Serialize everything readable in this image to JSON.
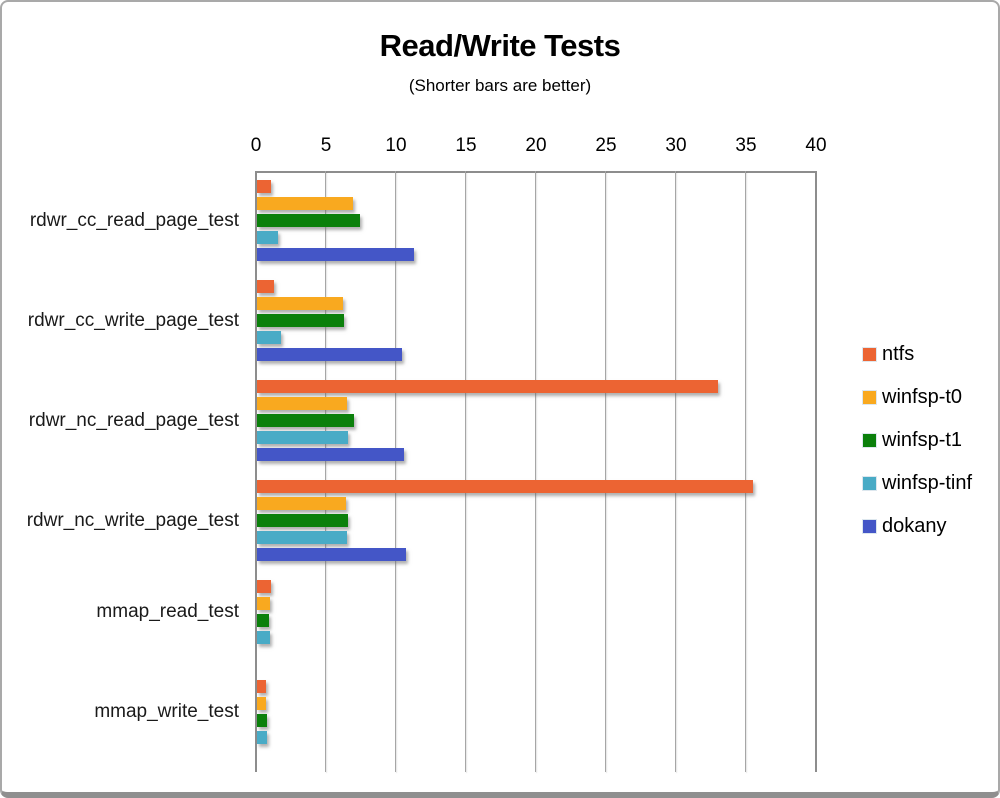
{
  "window": {
    "kind": "chart-image"
  },
  "chart_data": {
    "type": "bar",
    "orientation": "horizontal",
    "title": "Read/Write Tests",
    "subtitle": "(Shorter bars are better)",
    "categories": [
      "rdwr_cc_read_page_test",
      "rdwr_cc_write_page_test",
      "rdwr_nc_read_page_test",
      "rdwr_nc_write_page_test",
      "mmap_read_test",
      "mmap_write_test"
    ],
    "series": [
      {
        "name": "ntfs",
        "color": "#ec6433",
        "values": [
          1.1,
          1.3,
          33.0,
          35.5,
          1.1,
          0.7
        ]
      },
      {
        "name": "winfsp-t0",
        "color": "#f9a91f",
        "values": [
          6.9,
          6.2,
          6.5,
          6.4,
          1.0,
          0.7
        ]
      },
      {
        "name": "winfsp-t1",
        "color": "#0b800b",
        "values": [
          7.4,
          6.3,
          7.0,
          6.6,
          0.9,
          0.75
        ]
      },
      {
        "name": "winfsp-tinf",
        "color": "#49abc6",
        "values": [
          1.6,
          1.8,
          6.6,
          6.5,
          1.0,
          0.8
        ]
      },
      {
        "name": "dokany",
        "color": "#4456c7",
        "values": [
          11.3,
          10.4,
          10.6,
          10.7,
          0,
          0
        ]
      }
    ],
    "xlim": [
      0,
      40
    ],
    "xticks": [
      0,
      5,
      10,
      15,
      20,
      25,
      30,
      35,
      40
    ],
    "xlabel": "",
    "ylabel": "",
    "grid": "vertical",
    "legend_position": "right",
    "note_zero_values_not_drawn": true
  }
}
